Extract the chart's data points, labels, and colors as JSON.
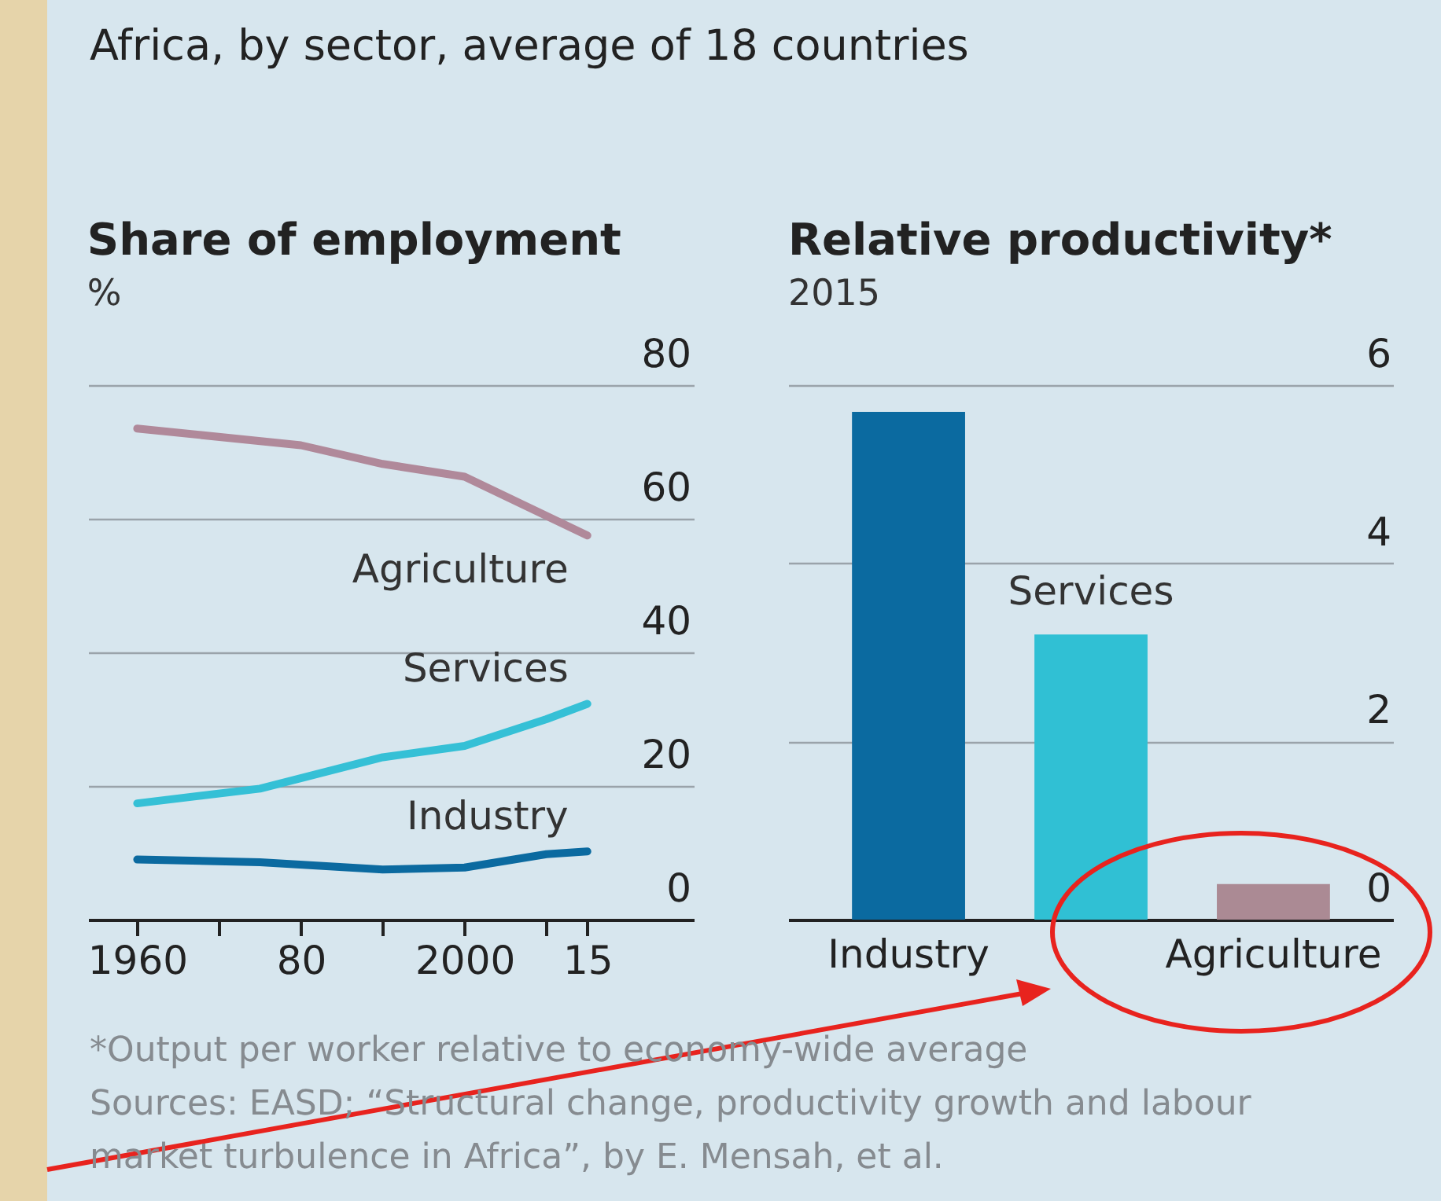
{
  "chart_data": [
    {
      "type": "line",
      "title": "Share of employment",
      "subtitle": "%",
      "annotations": [
        "Africa, by sector, average of 18 countries"
      ],
      "xlim": [
        1954,
        2028
      ],
      "xticks": [
        1960,
        {
          "value": 1970,
          "label": null
        },
        {
          "value": 1980,
          "label": "80"
        },
        {
          "value": 1990,
          "label": null
        },
        2000,
        {
          "value": 2010,
          "label": null
        },
        {
          "value": 2015,
          "label": "15"
        }
      ],
      "ylim": [
        0,
        80
      ],
      "yticks": [
        0,
        20,
        40,
        60,
        80
      ],
      "grid": "y",
      "legend": false,
      "series": [
        {
          "name": "Agriculture",
          "color": "#b0899a",
          "x": [
            1960,
            1980,
            1990,
            2000,
            2015
          ],
          "values": [
            73.5,
            71,
            68.2,
            66.3,
            57.5
          ]
        },
        {
          "name": "Services",
          "color": "#35c0d6",
          "x": [
            1960,
            1975,
            1990,
            2000,
            2010,
            2015
          ],
          "values": [
            17.4,
            19.6,
            24.3,
            26,
            30,
            32.3
          ]
        },
        {
          "name": "Industry",
          "color": "#0b6aa0",
          "x": [
            1960,
            1975,
            1990,
            2000,
            2010,
            2015
          ],
          "values": [
            9,
            8.6,
            7.5,
            7.8,
            9.8,
            10.2
          ]
        }
      ]
    },
    {
      "type": "bar",
      "title": "Relative productivity*",
      "subtitle": "2015",
      "categories": [
        "Industry",
        "Services",
        "Agriculture"
      ],
      "values": [
        5.7,
        3.2,
        0.4
      ],
      "colors": [
        "#0b6aa0",
        "#30c0d4",
        "#ab8a94"
      ],
      "ylim": [
        0,
        6
      ],
      "yticks": [
        0,
        2,
        4,
        6
      ],
      "grid": "y",
      "annotations": [
        "*Output per worker relative to economy-wide average",
        "Sources: EASD; “Structural change, productivity growth and labour market turbulence in Africa”, by E. Mensah, et al."
      ]
    }
  ]
}
